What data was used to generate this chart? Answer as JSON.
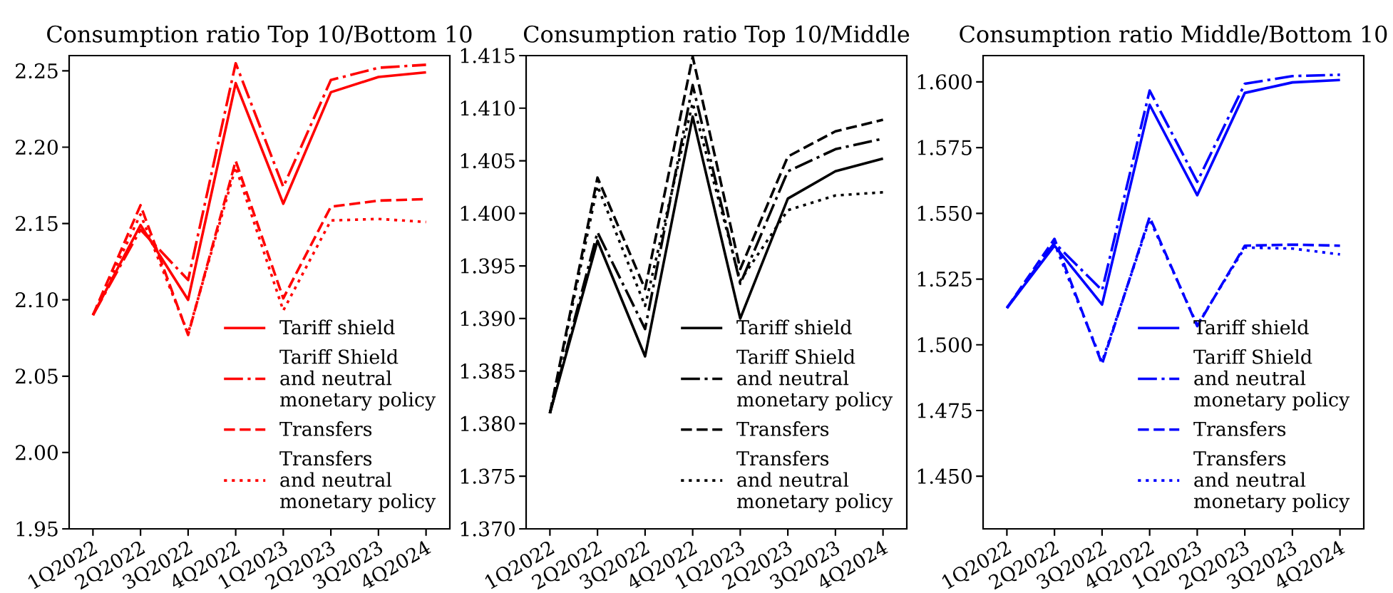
{
  "chart_data": [
    {
      "type": "line",
      "title": "Consumption ratio Top 10/Bottom 10",
      "categories": [
        "1Q2022",
        "2Q2022",
        "3Q2022",
        "4Q2022",
        "1Q2023",
        "2Q2023",
        "3Q2023",
        "4Q2024"
      ],
      "series": [
        {
          "name": "Tariff shield",
          "color": "#ff0000",
          "line_style": "solid",
          "values": [
            2.09,
            2.149,
            2.1,
            2.242,
            2.163,
            2.236,
            2.246,
            2.249
          ]
        },
        {
          "name": "Tariff Shield\nand neutral\nmonetary policy",
          "color": "#ff0000",
          "line_style": "dashdot",
          "values": [
            2.09,
            2.146,
            2.113,
            2.255,
            2.174,
            2.244,
            2.252,
            2.254
          ]
        },
        {
          "name": "Transfers",
          "color": "#ff0000",
          "line_style": "dashed",
          "values": [
            2.09,
            2.162,
            2.077,
            2.191,
            2.101,
            2.161,
            2.165,
            2.166
          ]
        },
        {
          "name": "Transfers\nand neutral\nmonetary policy",
          "color": "#ff0000",
          "line_style": "dotted",
          "values": [
            2.09,
            2.156,
            2.078,
            2.187,
            2.093,
            2.152,
            2.153,
            2.151
          ]
        }
      ],
      "ylim": [
        1.95,
        2.26
      ],
      "yticks": [
        1.95,
        {
          "value": 2.0,
          "label": "2.00"
        },
        2.05,
        {
          "value": 2.1,
          "label": "2.10"
        },
        2.15,
        {
          "value": 2.2,
          "label": "2.20"
        },
        2.25
      ],
      "legend": "bottom right"
    },
    {
      "type": "line",
      "title": "Consumption ratio Top 10/Middle",
      "categories": [
        "1Q2022",
        "2Q2022",
        "3Q2022",
        "4Q2022",
        "1Q2023",
        "2Q2023",
        "3Q2023",
        "4Q2024"
      ],
      "series": [
        {
          "name": "Tariff shield",
          "color": "#000000",
          "line_style": "solid",
          "values": [
            1.381,
            1.3974,
            1.3864,
            1.4092,
            1.39,
            1.4014,
            1.404,
            1.4052
          ]
        },
        {
          "name": "Tariff Shield\nand neutral\nmonetary policy",
          "color": "#000000",
          "line_style": "dashdot",
          "values": [
            1.381,
            1.3982,
            1.389,
            1.4122,
            1.3933,
            1.404,
            1.4061,
            1.4071
          ]
        },
        {
          "name": "Transfers",
          "color": "#000000",
          "line_style": "dashed",
          "values": [
            1.381,
            1.4034,
            1.3928,
            1.4149,
            1.3947,
            1.4054,
            1.4078,
            1.4089
          ]
        },
        {
          "name": "Transfers\nand neutral\nmonetary policy",
          "color": "#000000",
          "line_style": "dotted",
          "values": [
            1.381,
            1.4026,
            1.3912,
            1.4105,
            1.3936,
            1.4003,
            1.4017,
            1.402
          ]
        }
      ],
      "ylim": [
        1.37,
        1.415
      ],
      "yticks": [
        {
          "value": 1.37,
          "label": "1.370"
        },
        1.375,
        {
          "value": 1.38,
          "label": "1.380"
        },
        1.385,
        {
          "value": 1.39,
          "label": "1.390"
        },
        1.395,
        {
          "value": 1.4,
          "label": "1.400"
        },
        1.405,
        {
          "value": 1.41,
          "label": "1.410"
        },
        1.415
      ],
      "legend": "bottom right"
    },
    {
      "type": "line",
      "title": "Consumption ratio Middle/Bottom 10",
      "categories": [
        "1Q2022",
        "2Q2022",
        "3Q2022",
        "4Q2022",
        "1Q2023",
        "2Q2023",
        "3Q2023",
        "4Q2024"
      ],
      "series": [
        {
          "name": "Tariff shield",
          "color": "#0000ff",
          "line_style": "solid",
          "values": [
            1.514,
            1.5377,
            1.5153,
            1.5913,
            1.5569,
            1.5958,
            1.5998,
            1.6007
          ]
        },
        {
          "name": "Tariff Shield\nand neutral\nmonetary policy",
          "color": "#0000ff",
          "line_style": "dashdot",
          "values": [
            1.514,
            1.5388,
            1.5207,
            1.5967,
            1.562,
            1.5993,
            1.6022,
            1.6027
          ]
        },
        {
          "name": "Transfers",
          "color": "#0000ff",
          "line_style": "dashed",
          "values": [
            1.514,
            1.5403,
            1.4927,
            1.5486,
            1.5071,
            1.5377,
            1.5381,
            1.5377
          ]
        },
        {
          "name": "Transfers\nand neutral\nmonetary policy",
          "color": "#0000ff",
          "line_style": "dotted",
          "values": [
            1.514,
            1.5385,
            1.4935,
            1.5478,
            1.5075,
            1.537,
            1.5366,
            1.5344
          ]
        }
      ],
      "ylim": [
        1.43,
        1.61
      ],
      "yticks": [
        {
          "value": 1.45,
          "label": "1.450"
        },
        1.475,
        {
          "value": 1.5,
          "label": "1.500"
        },
        1.525,
        {
          "value": 1.55,
          "label": "1.550"
        },
        1.575,
        {
          "value": 1.6,
          "label": "1.600"
        }
      ],
      "legend": "bottom right"
    }
  ]
}
